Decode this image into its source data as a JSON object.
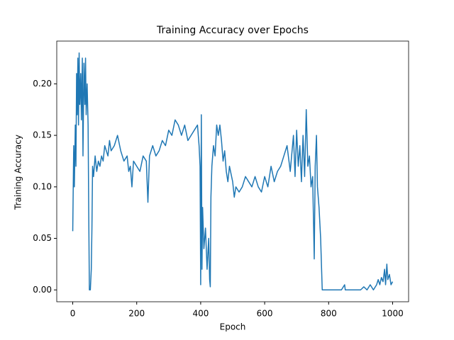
{
  "chart_data": {
    "type": "line",
    "title": "Training Accuracy over Epochs",
    "x_label": "Epoch",
    "y_label": "Training Accuracy",
    "xlim": [
      -50,
      1050
    ],
    "ylim": [
      -0.0115,
      0.2415
    ],
    "xticks": [
      0,
      200,
      400,
      600,
      800,
      1000
    ],
    "yticks": [
      {
        "value": 0,
        "label": "0.00"
      },
      {
        "value": 0.05,
        "label": "0.05"
      },
      {
        "value": 0.1,
        "label": "0.10"
      },
      {
        "value": 0.15,
        "label": "0.15"
      },
      {
        "value": 0.2,
        "label": "0.20"
      }
    ],
    "series": [
      {
        "color": "#1f77b4",
        "x": [
          0,
          3,
          5,
          8,
          10,
          12,
          14,
          16,
          18,
          20,
          22,
          25,
          27,
          30,
          32,
          35,
          38,
          40,
          42,
          45,
          48,
          50,
          52,
          55,
          58,
          60,
          62,
          65,
          70,
          75,
          80,
          85,
          90,
          95,
          100,
          110,
          115,
          120,
          130,
          140,
          150,
          160,
          170,
          175,
          180,
          185,
          190,
          200,
          210,
          220,
          230,
          235,
          240,
          250,
          260,
          270,
          280,
          290,
          300,
          310,
          320,
          330,
          340,
          350,
          360,
          370,
          380,
          390,
          395,
          398,
          400,
          402,
          404,
          406,
          410,
          415,
          420,
          425,
          428,
          430,
          432,
          435,
          440,
          445,
          450,
          455,
          460,
          465,
          470,
          475,
          480,
          485,
          490,
          500,
          505,
          510,
          520,
          530,
          540,
          550,
          560,
          570,
          580,
          590,
          600,
          610,
          620,
          630,
          640,
          650,
          660,
          670,
          680,
          690,
          695,
          700,
          705,
          710,
          715,
          720,
          725,
          730,
          735,
          740,
          745,
          750,
          755,
          758,
          762,
          765,
          770,
          775,
          780,
          800,
          820,
          840,
          850,
          852,
          880,
          900,
          910,
          920,
          930,
          940,
          950,
          955,
          960,
          965,
          970,
          975,
          978,
          982,
          985,
          990,
          995,
          1000
        ],
        "values": [
          0.057,
          0.14,
          0.1,
          0.16,
          0.12,
          0.21,
          0.17,
          0.225,
          0.16,
          0.23,
          0.18,
          0.21,
          0.165,
          0.225,
          0.13,
          0.22,
          0.18,
          0.225,
          0.17,
          0.2,
          0.16,
          0.075,
          0,
          0,
          0.02,
          0.06,
          0.12,
          0.11,
          0.13,
          0.115,
          0.125,
          0.12,
          0.13,
          0.125,
          0.14,
          0.13,
          0.145,
          0.135,
          0.14,
          0.15,
          0.135,
          0.125,
          0.13,
          0.115,
          0.12,
          0.1,
          0.125,
          0.12,
          0.115,
          0.13,
          0.125,
          0.085,
          0.13,
          0.14,
          0.13,
          0.135,
          0.145,
          0.14,
          0.155,
          0.15,
          0.165,
          0.16,
          0.15,
          0.16,
          0.145,
          0.15,
          0.155,
          0.16,
          0.14,
          0.12,
          0.005,
          0.17,
          0.02,
          0.08,
          0.04,
          0.06,
          0.02,
          0.05,
          0.01,
          0.003,
          0.09,
          0.12,
          0.14,
          0.13,
          0.16,
          0.15,
          0.16,
          0.145,
          0.125,
          0.135,
          0.115,
          0.105,
          0.12,
          0.105,
          0.09,
          0.1,
          0.095,
          0.1,
          0.11,
          0.105,
          0.1,
          0.11,
          0.1,
          0.095,
          0.11,
          0.1,
          0.12,
          0.105,
          0.115,
          0.12,
          0.13,
          0.14,
          0.115,
          0.15,
          0.11,
          0.155,
          0.12,
          0.14,
          0.105,
          0.15,
          0.11,
          0.175,
          0.12,
          0.13,
          0.1,
          0.11,
          0.03,
          0.12,
          0.15,
          0.1,
          0.08,
          0.05,
          0,
          0,
          0,
          0,
          0.005,
          0,
          0,
          0,
          0.003,
          0,
          0.005,
          0,
          0.005,
          0.01,
          0.005,
          0.012,
          0.008,
          0.02,
          0.005,
          0.025,
          0.01,
          0.015,
          0.005,
          0.008
        ]
      }
    ]
  }
}
